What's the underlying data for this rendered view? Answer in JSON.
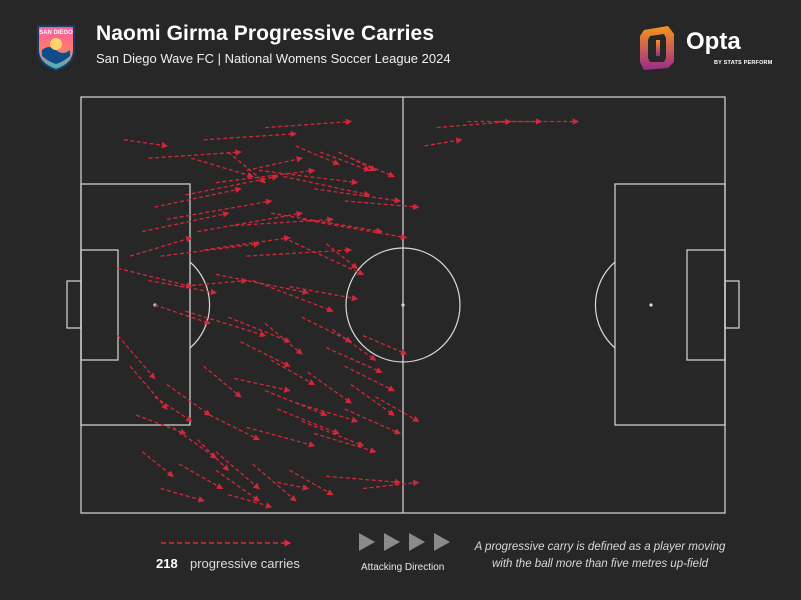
{
  "header": {
    "title": "Naomi Girma Progressive Carries",
    "subtitle": "San Diego Wave FC | National Womens Soccer League 2024",
    "club_crest_text": "SAN DIEGO",
    "brand_name": "Opta",
    "brand_byline": "BY STATS PERFORM"
  },
  "colors": {
    "background": "#272727",
    "pitch_lines": "#d9d9d9",
    "carry_arrow": "#e0283a",
    "opta_gradient": [
      "#f7941d",
      "#9b2b8c"
    ]
  },
  "legend": {
    "count": "218",
    "count_label": "progressive carries",
    "direction_label": "Attacking Direction",
    "note": "A progressive carry is defined as a player moving with the ball more than five metres up-field"
  },
  "chart_data": {
    "type": "arrow-map",
    "pitch": {
      "length": 105,
      "width": 68,
      "attacking_direction": "left-to-right"
    },
    "series": [
      {
        "name": "progressive carries",
        "total_count": 218,
        "carries_sample": [
          [
            11,
            10,
            26,
            9
          ],
          [
            20,
            7,
            35,
            6
          ],
          [
            30,
            5,
            44,
            4
          ],
          [
            58,
            5,
            70,
            4
          ],
          [
            63,
            4,
            75,
            4
          ],
          [
            68,
            4,
            81,
            4
          ],
          [
            56,
            8,
            62,
            7
          ],
          [
            7,
            7,
            14,
            8
          ],
          [
            18,
            10,
            28,
            13
          ],
          [
            24,
            9,
            30,
            14
          ],
          [
            35,
            8,
            42,
            11
          ],
          [
            39,
            9,
            47,
            12
          ],
          [
            44,
            10,
            51,
            13
          ],
          [
            42,
            9,
            48,
            12
          ],
          [
            27,
            12,
            36,
            10
          ],
          [
            12,
            18,
            26,
            15
          ],
          [
            17,
            16,
            32,
            13
          ],
          [
            22,
            14,
            38,
            12
          ],
          [
            29,
            12,
            45,
            14
          ],
          [
            33,
            13,
            47,
            16
          ],
          [
            38,
            15,
            52,
            17
          ],
          [
            43,
            17,
            55,
            18
          ],
          [
            10,
            22,
            24,
            19
          ],
          [
            14,
            20,
            31,
            17
          ],
          [
            19,
            22,
            36,
            19
          ],
          [
            25,
            21,
            41,
            20
          ],
          [
            31,
            19,
            49,
            22
          ],
          [
            36,
            20,
            53,
            23
          ],
          [
            8,
            26,
            18,
            23
          ],
          [
            13,
            26,
            29,
            24
          ],
          [
            20,
            25,
            34,
            23
          ],
          [
            27,
            26,
            44,
            25
          ],
          [
            33,
            23,
            46,
            29
          ],
          [
            40,
            24,
            45,
            28
          ],
          [
            6,
            28,
            18,
            31
          ],
          [
            11,
            30,
            22,
            32
          ],
          [
            16,
            31,
            27,
            30
          ],
          [
            22,
            29,
            37,
            32
          ],
          [
            28,
            30,
            41,
            35
          ],
          [
            34,
            31,
            45,
            33
          ],
          [
            12,
            34,
            21,
            37
          ],
          [
            17,
            35,
            30,
            39
          ],
          [
            24,
            36,
            34,
            40
          ],
          [
            30,
            37,
            36,
            42
          ],
          [
            36,
            36,
            44,
            40
          ],
          [
            41,
            38,
            48,
            43
          ],
          [
            6,
            39,
            12,
            46
          ],
          [
            8,
            44,
            14,
            51
          ],
          [
            14,
            47,
            21,
            52
          ],
          [
            20,
            44,
            26,
            49
          ],
          [
            25,
            46,
            34,
            48
          ],
          [
            31,
            43,
            38,
            47
          ],
          [
            37,
            45,
            44,
            50
          ],
          [
            43,
            44,
            51,
            48
          ],
          [
            9,
            52,
            17,
            55
          ],
          [
            15,
            54,
            22,
            59
          ],
          [
            21,
            52,
            29,
            56
          ],
          [
            27,
            54,
            38,
            57
          ],
          [
            32,
            51,
            42,
            55
          ],
          [
            36,
            53,
            46,
            57
          ],
          [
            10,
            58,
            15,
            62
          ],
          [
            16,
            60,
            23,
            64
          ],
          [
            22,
            58,
            29,
            64
          ],
          [
            28,
            60,
            35,
            66
          ],
          [
            34,
            61,
            41,
            65
          ],
          [
            40,
            62,
            52,
            63
          ],
          [
            46,
            64,
            55,
            63
          ],
          [
            24,
            65,
            31,
            67
          ],
          [
            13,
            64,
            20,
            66
          ],
          [
            38,
            55,
            48,
            58
          ],
          [
            43,
            51,
            52,
            55
          ],
          [
            30,
            48,
            40,
            52
          ],
          [
            35,
            50,
            45,
            53
          ],
          [
            19,
            56,
            24,
            61
          ],
          [
            12,
            49,
            18,
            53
          ],
          [
            26,
            40,
            34,
            44
          ],
          [
            44,
            47,
            51,
            52
          ],
          [
            48,
            49,
            55,
            53
          ],
          [
            40,
            41,
            49,
            45
          ],
          [
            46,
            39,
            53,
            42
          ],
          [
            22,
            61,
            29,
            66
          ],
          [
            32,
            63,
            37,
            64
          ]
        ]
      }
    ],
    "xlim": [
      0,
      105
    ],
    "ylim": [
      0,
      68
    ],
    "grid": false,
    "legend": "bottom-left"
  }
}
